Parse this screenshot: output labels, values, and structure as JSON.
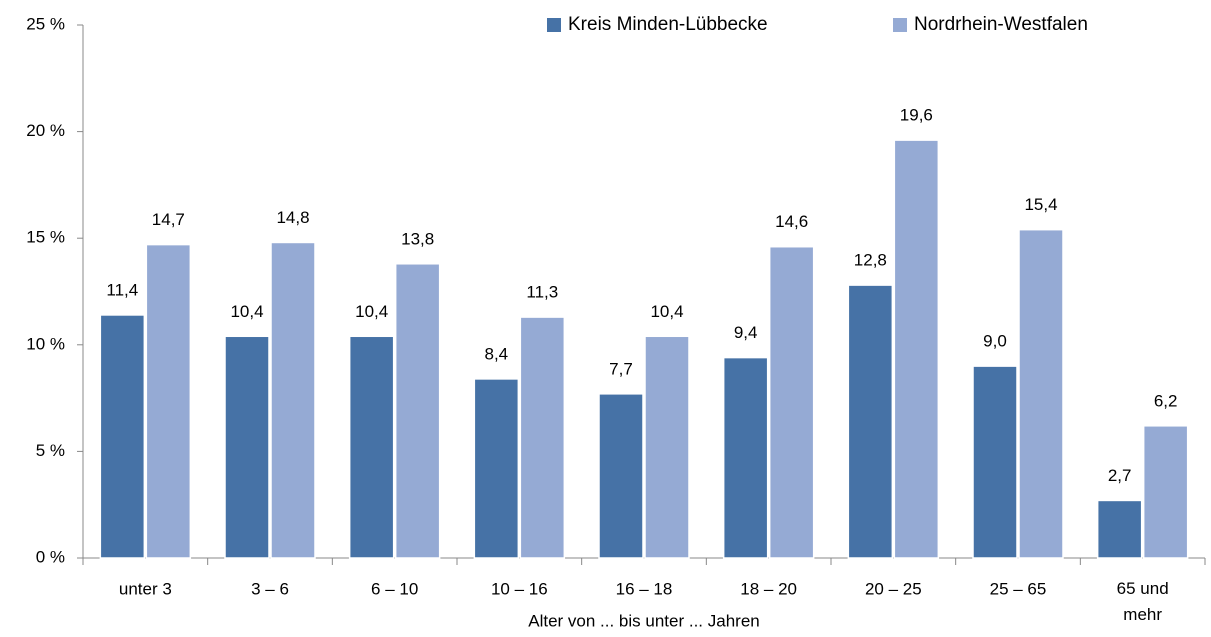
{
  "chart_data": {
    "type": "bar",
    "x_label": "Alter von ... bis unter ... Jahren",
    "categories": [
      "unter 3",
      "3 –  6",
      "6 – 10",
      "10 – 16",
      "16 – 18",
      "18 – 20",
      "20 – 25",
      "25 – 65",
      "65 und mehr"
    ],
    "series": [
      {
        "name": "Kreis Minden-Lübbecke",
        "color": "#4672a6",
        "values": [
          11.4,
          10.4,
          10.4,
          8.4,
          7.7,
          9.4,
          12.8,
          9.0,
          2.7
        ],
        "value_labels": [
          "11,4",
          "10,4",
          "10,4",
          "8,4",
          "7,7",
          "9,4",
          "12,8",
          "9,0",
          "2,7"
        ]
      },
      {
        "name": "Nordrhein-Westfalen",
        "color": "#95aad4",
        "values": [
          14.7,
          14.8,
          13.8,
          11.3,
          10.4,
          14.6,
          19.6,
          15.4,
          6.2
        ],
        "value_labels": [
          "14,7",
          "14,8",
          "13,8",
          "11,3",
          "10,4",
          "14,6",
          "19,6",
          "15,4",
          "6,2"
        ]
      }
    ],
    "ylim": [
      0,
      25
    ],
    "yticks": [
      {
        "value": 0,
        "label": "0 %"
      },
      {
        "value": 5,
        "label": "5 %"
      },
      {
        "value": 10,
        "label": "10 %"
      },
      {
        "value": 15,
        "label": "15 %"
      },
      {
        "value": 20,
        "label": "20 %"
      },
      {
        "value": 25,
        "label": "25 %"
      }
    ],
    "legend": "top",
    "grid": false
  }
}
